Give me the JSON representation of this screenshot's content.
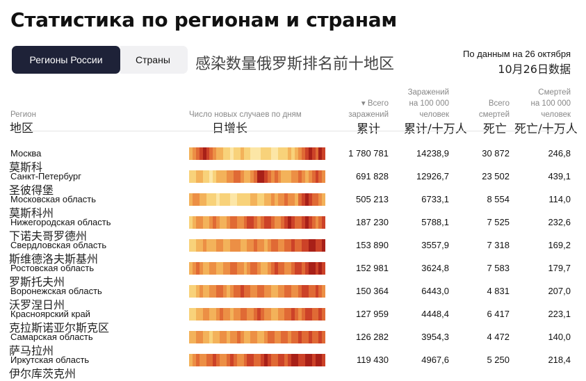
{
  "title": "Статистика по регионам и странам",
  "tabs": [
    "Регионы России",
    "Страны"
  ],
  "cn_title": "感染数量俄罗斯排名前十地区",
  "as_of": {
    "ru": "По данным на 26 октября",
    "cn": "10月26日数据"
  },
  "columns": {
    "region": {
      "ru": "Регион",
      "cn": "地区"
    },
    "daily": {
      "ru": "Число новых случаев по дням",
      "cn": "日增长"
    },
    "total": {
      "ru1": "▾ Всего",
      "ru2": "заражений",
      "cn": "累计"
    },
    "per100k": {
      "ru1": "Заражений",
      "ru2": "на 100 000",
      "ru3": "человек",
      "cn": "累计/十万人"
    },
    "deaths": {
      "ru1": "Всего",
      "ru2": "смертей",
      "cn": "死亡"
    },
    "deaths100k": {
      "ru1": "Смертей",
      "ru2": "на 100 000",
      "ru3": "человек",
      "cn": "死亡/十万人"
    }
  },
  "strip_palette": [
    "#fce6a6",
    "#f8d27a",
    "#f3b25a",
    "#ec8f45",
    "#e06a35",
    "#cc4228",
    "#a82018"
  ],
  "rows": [
    {
      "ru": "Москва",
      "cn": "莫斯科",
      "total": "1 780 781",
      "per100k": "14238,9",
      "deaths": "30 872",
      "deaths100k": "246,8",
      "strip": [
        2,
        3,
        4,
        5,
        6,
        5,
        4,
        3,
        2,
        2,
        1,
        1,
        0,
        1,
        1,
        2,
        1,
        1,
        0,
        0,
        0,
        1,
        1,
        1,
        0,
        0,
        1,
        1,
        1,
        2,
        1,
        2,
        3,
        4,
        5,
        6,
        5,
        4,
        6,
        5
      ]
    },
    {
      "ru": "Санкт-Петербург",
      "cn": "圣彼得堡",
      "total": "691 828",
      "per100k": "12926,7",
      "deaths": "23 502",
      "deaths100k": "439,1",
      "strip": [
        1,
        1,
        2,
        2,
        1,
        1,
        0,
        1,
        2,
        2,
        2,
        3,
        3,
        4,
        4,
        3,
        2,
        2,
        3,
        4,
        6,
        6,
        5,
        4,
        3,
        4,
        3,
        2,
        2,
        2,
        3,
        3,
        4,
        3,
        2,
        3,
        4,
        5,
        4,
        3
      ]
    },
    {
      "ru": "Московская область",
      "cn": "莫斯科州",
      "total": "505 213",
      "per100k": "6733,1",
      "deaths": "8 554",
      "deaths100k": "114,0",
      "strip": [
        2,
        3,
        3,
        2,
        2,
        1,
        1,
        1,
        0,
        1,
        1,
        1,
        0,
        0,
        1,
        1,
        1,
        1,
        2,
        2,
        1,
        1,
        2,
        2,
        3,
        2,
        3,
        3,
        4,
        3,
        3,
        2,
        4,
        5,
        6,
        5,
        4,
        4,
        3,
        2
      ]
    },
    {
      "ru": "Нижегородская область",
      "cn": "下诺夫哥罗德州",
      "total": "187 230",
      "per100k": "5788,1",
      "deaths": "7 525",
      "deaths100k": "232,6",
      "strip": [
        1,
        2,
        3,
        3,
        2,
        2,
        3,
        4,
        3,
        2,
        2,
        3,
        4,
        4,
        3,
        3,
        4,
        5,
        5,
        4,
        3,
        4,
        5,
        5,
        4,
        3,
        3,
        4,
        5,
        6,
        5,
        4,
        4,
        5,
        6,
        5,
        4,
        3,
        4,
        5
      ]
    },
    {
      "ru": "Свердловская область",
      "cn": "斯维德洛夫斯基州",
      "total": "153 890",
      "per100k": "3557,9",
      "deaths": "7 318",
      "deaths100k": "169,2",
      "strip": [
        1,
        1,
        2,
        2,
        3,
        2,
        2,
        2,
        3,
        3,
        2,
        2,
        3,
        3,
        3,
        2,
        2,
        3,
        3,
        4,
        3,
        3,
        2,
        3,
        4,
        4,
        3,
        3,
        4,
        4,
        5,
        4,
        4,
        5,
        5,
        6,
        6,
        5,
        5,
        6
      ]
    },
    {
      "ru": "Ростовская область",
      "cn": "罗斯托夫州",
      "total": "152 981",
      "per100k": "3624,8",
      "deaths": "7 583",
      "deaths100k": "179,7",
      "strip": [
        2,
        3,
        4,
        3,
        2,
        2,
        3,
        3,
        2,
        2,
        3,
        3,
        4,
        4,
        3,
        3,
        2,
        3,
        4,
        4,
        3,
        2,
        2,
        3,
        4,
        5,
        4,
        4,
        3,
        3,
        4,
        5,
        5,
        4,
        5,
        6,
        6,
        5,
        6,
        5
      ]
    },
    {
      "ru": "Воронежская область",
      "cn": "沃罗涅日州",
      "total": "150 364",
      "per100k": "6443,0",
      "deaths": "4 831",
      "deaths100k": "207,0",
      "strip": [
        1,
        1,
        2,
        3,
        2,
        2,
        3,
        3,
        4,
        4,
        3,
        2,
        3,
        4,
        4,
        5,
        4,
        4,
        3,
        3,
        4,
        4,
        3,
        3,
        2,
        2,
        3,
        3,
        4,
        4,
        3,
        3,
        4,
        5,
        5,
        4,
        4,
        5,
        4,
        3
      ]
    },
    {
      "ru": "Красноярский край",
      "cn": "克拉斯诺亚尔斯克区",
      "total": "127 959",
      "per100k": "4448,4",
      "deaths": "6 417",
      "deaths100k": "223,1",
      "strip": [
        1,
        1,
        2,
        2,
        3,
        3,
        2,
        2,
        3,
        4,
        3,
        3,
        2,
        3,
        3,
        4,
        4,
        3,
        3,
        4,
        5,
        4,
        3,
        3,
        2,
        2,
        3,
        3,
        4,
        4,
        5,
        4,
        3,
        4,
        5,
        5,
        4,
        4,
        5,
        4
      ]
    },
    {
      "ru": "Самарская область",
      "cn": "萨马拉州",
      "total": "126 282",
      "per100k": "3954,3",
      "deaths": "4 472",
      "deaths100k": "140,0",
      "strip": [
        2,
        2,
        3,
        3,
        2,
        2,
        1,
        2,
        2,
        3,
        3,
        2,
        3,
        3,
        4,
        3,
        2,
        2,
        3,
        3,
        2,
        2,
        3,
        4,
        4,
        3,
        3,
        4,
        4,
        3,
        4,
        4,
        5,
        4,
        4,
        5,
        4,
        4,
        5,
        4
      ]
    },
    {
      "ru": "Иркутская область",
      "cn": "伊尔库茨克州",
      "total": "119 430",
      "per100k": "4967,6",
      "deaths": "5 250",
      "deaths100k": "218,4",
      "strip": [
        2,
        3,
        4,
        3,
        3,
        4,
        4,
        5,
        4,
        3,
        3,
        4,
        5,
        4,
        3,
        3,
        4,
        5,
        5,
        4,
        4,
        5,
        6,
        5,
        4,
        4,
        5,
        5,
        4,
        5,
        6,
        6,
        5,
        5,
        6,
        6,
        5,
        6,
        6,
        5
      ]
    }
  ]
}
